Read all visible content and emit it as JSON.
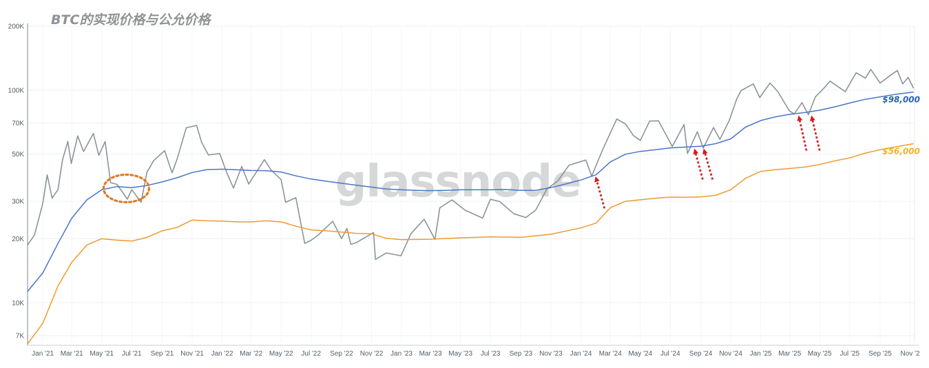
{
  "title": "BTC的实现价格与公允价格",
  "watermark": "glassnode",
  "chart_data": {
    "type": "line",
    "scale": "log",
    "ylim": [
      6500,
      200000
    ],
    "xlim": [
      "2020-12-01",
      "2025-11-10"
    ],
    "yticks": [
      {
        "v": 200000,
        "label": "200K"
      },
      {
        "v": 100000,
        "label": "100K"
      },
      {
        "v": 70000,
        "label": "70K"
      },
      {
        "v": 50000,
        "label": "50K"
      },
      {
        "v": 30000,
        "label": "30K"
      },
      {
        "v": 20000,
        "label": "20K"
      },
      {
        "v": 10000,
        "label": "10K"
      },
      {
        "v": 7000,
        "label": "7K"
      }
    ],
    "xticks": [
      {
        "d": "2021-01-01",
        "label": "Jan '21"
      },
      {
        "d": "2021-03-01",
        "label": "Mar '21"
      },
      {
        "d": "2021-05-01",
        "label": "May '21"
      },
      {
        "d": "2021-07-01",
        "label": "Jul '21"
      },
      {
        "d": "2021-09-01",
        "label": "Sep '21"
      },
      {
        "d": "2021-11-01",
        "label": "Nov '21"
      },
      {
        "d": "2022-01-01",
        "label": "Jan '22"
      },
      {
        "d": "2022-03-01",
        "label": "Mar '22"
      },
      {
        "d": "2022-05-01",
        "label": "May '22"
      },
      {
        "d": "2022-07-01",
        "label": "Jul '22"
      },
      {
        "d": "2022-09-01",
        "label": "Sep '22"
      },
      {
        "d": "2022-11-01",
        "label": "Nov '22"
      },
      {
        "d": "2023-01-01",
        "label": "Jan '23"
      },
      {
        "d": "2023-03-01",
        "label": "Mar '23"
      },
      {
        "d": "2023-05-01",
        "label": "May '23"
      },
      {
        "d": "2023-07-01",
        "label": "Jul '23"
      },
      {
        "d": "2023-09-01",
        "label": "Sep '23"
      },
      {
        "d": "2023-11-01",
        "label": "Nov '23"
      },
      {
        "d": "2024-01-01",
        "label": "Jan '24"
      },
      {
        "d": "2024-03-01",
        "label": "Mar '24"
      },
      {
        "d": "2024-05-01",
        "label": "May '24"
      },
      {
        "d": "2024-07-01",
        "label": "Jul '24"
      },
      {
        "d": "2024-09-01",
        "label": "Sep '24"
      },
      {
        "d": "2024-11-01",
        "label": "Nov '24"
      },
      {
        "d": "2025-01-01",
        "label": "Jan '25"
      },
      {
        "d": "2025-03-01",
        "label": "Mar '25"
      },
      {
        "d": "2025-05-01",
        "label": "May '25"
      },
      {
        "d": "2025-07-01",
        "label": "Jul '25"
      },
      {
        "d": "2025-09-01",
        "label": "Sep '25"
      },
      {
        "d": "2025-11-01",
        "label": "Nov '2"
      }
    ],
    "series": [
      {
        "key": "price",
        "color": "#8a9499",
        "points": [
          [
            "2020-12-01",
            18500
          ],
          [
            "2020-12-15",
            21000
          ],
          [
            "2021-01-01",
            29000
          ],
          [
            "2021-01-10",
            40000
          ],
          [
            "2021-01-20",
            31000
          ],
          [
            "2021-02-01",
            34000
          ],
          [
            "2021-02-10",
            47000
          ],
          [
            "2021-02-21",
            57000
          ],
          [
            "2021-02-28",
            45000
          ],
          [
            "2021-03-13",
            61000
          ],
          [
            "2021-03-25",
            52000
          ],
          [
            "2021-04-14",
            63000
          ],
          [
            "2021-04-25",
            49000
          ],
          [
            "2021-05-08",
            58000
          ],
          [
            "2021-05-19",
            37000
          ],
          [
            "2021-06-01",
            36000
          ],
          [
            "2021-06-22",
            31000
          ],
          [
            "2021-07-01",
            34000
          ],
          [
            "2021-07-20",
            29800
          ],
          [
            "2021-08-01",
            41000
          ],
          [
            "2021-08-15",
            47000
          ],
          [
            "2021-09-06",
            52000
          ],
          [
            "2021-09-21",
            41000
          ],
          [
            "2021-10-01",
            47000
          ],
          [
            "2021-10-20",
            66000
          ],
          [
            "2021-11-10",
            68000
          ],
          [
            "2021-11-20",
            57000
          ],
          [
            "2021-12-04",
            49000
          ],
          [
            "2021-12-27",
            50000
          ],
          [
            "2022-01-10",
            41000
          ],
          [
            "2022-01-24",
            35000
          ],
          [
            "2022-02-10",
            44000
          ],
          [
            "2022-02-24",
            36000
          ],
          [
            "2022-03-28",
            47000
          ],
          [
            "2022-04-10",
            42000
          ],
          [
            "2022-05-01",
            38000
          ],
          [
            "2022-05-10",
            30000
          ],
          [
            "2022-05-31",
            31500
          ],
          [
            "2022-06-18",
            19000
          ],
          [
            "2022-07-01",
            19800
          ],
          [
            "2022-07-15",
            20800
          ],
          [
            "2022-08-14",
            24400
          ],
          [
            "2022-09-01",
            20000
          ],
          [
            "2022-09-12",
            22200
          ],
          [
            "2022-09-20",
            18900
          ],
          [
            "2022-10-01",
            19300
          ],
          [
            "2022-11-05",
            21300
          ],
          [
            "2022-11-09",
            16000
          ],
          [
            "2022-12-01",
            17000
          ],
          [
            "2022-12-31",
            16500
          ],
          [
            "2023-01-20",
            21000
          ],
          [
            "2023-02-16",
            24500
          ],
          [
            "2023-03-10",
            20000
          ],
          [
            "2023-03-20",
            28000
          ],
          [
            "2023-04-14",
            30400
          ],
          [
            "2023-05-10",
            27500
          ],
          [
            "2023-06-15",
            25000
          ],
          [
            "2023-07-01",
            30500
          ],
          [
            "2023-07-20",
            29800
          ],
          [
            "2023-08-18",
            26000
          ],
          [
            "2023-09-11",
            25000
          ],
          [
            "2023-10-01",
            27000
          ],
          [
            "2023-10-24",
            34500
          ],
          [
            "2023-11-15",
            37000
          ],
          [
            "2023-12-08",
            44000
          ],
          [
            "2024-01-11",
            46500
          ],
          [
            "2024-01-23",
            39500
          ],
          [
            "2024-02-14",
            52000
          ],
          [
            "2024-03-14",
            73000
          ],
          [
            "2024-04-01",
            69000
          ],
          [
            "2024-04-17",
            61000
          ],
          [
            "2024-05-01",
            58000
          ],
          [
            "2024-05-20",
            71000
          ],
          [
            "2024-06-07",
            71000
          ],
          [
            "2024-07-05",
            54000
          ],
          [
            "2024-07-29",
            69000
          ],
          [
            "2024-08-05",
            50000
          ],
          [
            "2024-08-25",
            64000
          ],
          [
            "2024-09-06",
            53000
          ],
          [
            "2024-09-27",
            66000
          ],
          [
            "2024-10-10",
            59000
          ],
          [
            "2024-10-29",
            72000
          ],
          [
            "2024-11-13",
            90000
          ],
          [
            "2024-11-22",
            99000
          ],
          [
            "2024-12-17",
            106000
          ],
          [
            "2024-12-30",
            92000
          ],
          [
            "2025-01-20",
            108000
          ],
          [
            "2025-02-05",
            98000
          ],
          [
            "2025-02-28",
            80000
          ],
          [
            "2025-03-10",
            78000
          ],
          [
            "2025-03-26",
            88000
          ],
          [
            "2025-04-08",
            76000
          ],
          [
            "2025-04-22",
            93000
          ],
          [
            "2025-05-10",
            103000
          ],
          [
            "2025-05-22",
            111000
          ],
          [
            "2025-06-22",
            99000
          ],
          [
            "2025-07-14",
            122000
          ],
          [
            "2025-08-02",
            113000
          ],
          [
            "2025-08-13",
            124000
          ],
          [
            "2025-09-01",
            108000
          ],
          [
            "2025-09-20",
            116000
          ],
          [
            "2025-10-06",
            125000
          ],
          [
            "2025-10-17",
            106000
          ],
          [
            "2025-10-28",
            114000
          ],
          [
            "2025-11-08",
            102000
          ]
        ]
      },
      {
        "key": "fair",
        "color": "#4a74c9",
        "points": [
          [
            "2020-12-01",
            11300
          ],
          [
            "2021-01-01",
            13800
          ],
          [
            "2021-02-01",
            19000
          ],
          [
            "2021-03-01",
            25000
          ],
          [
            "2021-04-01",
            30500
          ],
          [
            "2021-05-01",
            34000
          ],
          [
            "2021-06-01",
            35200
          ],
          [
            "2021-07-01",
            34800
          ],
          [
            "2021-08-01",
            35600
          ],
          [
            "2021-09-01",
            37000
          ],
          [
            "2021-10-01",
            38700
          ],
          [
            "2021-11-01",
            41000
          ],
          [
            "2021-12-01",
            42300
          ],
          [
            "2022-01-01",
            42500
          ],
          [
            "2022-02-01",
            42200
          ],
          [
            "2022-03-01",
            41900
          ],
          [
            "2022-04-01",
            41800
          ],
          [
            "2022-05-01",
            41200
          ],
          [
            "2022-06-01",
            39500
          ],
          [
            "2022-07-01",
            38200
          ],
          [
            "2022-08-01",
            37300
          ],
          [
            "2022-09-01",
            36500
          ],
          [
            "2022-10-01",
            35700
          ],
          [
            "2022-11-01",
            35000
          ],
          [
            "2022-12-01",
            34300
          ],
          [
            "2023-01-01",
            34000
          ],
          [
            "2023-02-01",
            33800
          ],
          [
            "2023-03-01",
            33700
          ],
          [
            "2023-04-01",
            33800
          ],
          [
            "2023-05-01",
            34000
          ],
          [
            "2023-06-01",
            34000
          ],
          [
            "2023-07-01",
            34000
          ],
          [
            "2023-08-01",
            34100
          ],
          [
            "2023-09-01",
            33800
          ],
          [
            "2023-10-01",
            33800
          ],
          [
            "2023-11-01",
            34800
          ],
          [
            "2023-12-01",
            36200
          ],
          [
            "2024-01-01",
            37800
          ],
          [
            "2024-02-01",
            40000
          ],
          [
            "2024-03-01",
            46000
          ],
          [
            "2024-04-01",
            50000
          ],
          [
            "2024-05-01",
            51500
          ],
          [
            "2024-06-01",
            52500
          ],
          [
            "2024-07-01",
            53500
          ],
          [
            "2024-08-01",
            54000
          ],
          [
            "2024-09-01",
            54500
          ],
          [
            "2024-10-01",
            56000
          ],
          [
            "2024-11-01",
            59000
          ],
          [
            "2024-12-01",
            67000
          ],
          [
            "2025-01-01",
            72000
          ],
          [
            "2025-02-01",
            75000
          ],
          [
            "2025-03-01",
            77000
          ],
          [
            "2025-04-01",
            78500
          ],
          [
            "2025-05-01",
            80500
          ],
          [
            "2025-06-01",
            83500
          ],
          [
            "2025-07-01",
            87000
          ],
          [
            "2025-08-01",
            90500
          ],
          [
            "2025-09-01",
            93000
          ],
          [
            "2025-10-01",
            95500
          ],
          [
            "2025-11-08",
            98000
          ]
        ]
      },
      {
        "key": "realized",
        "color": "#ee9a2e",
        "points": [
          [
            "2020-12-01",
            6400
          ],
          [
            "2021-01-01",
            8000
          ],
          [
            "2021-02-01",
            12000
          ],
          [
            "2021-03-01",
            15500
          ],
          [
            "2021-04-01",
            18700
          ],
          [
            "2021-05-01",
            20000
          ],
          [
            "2021-06-01",
            19700
          ],
          [
            "2021-07-01",
            19500
          ],
          [
            "2021-08-01",
            20300
          ],
          [
            "2021-09-01",
            21800
          ],
          [
            "2021-10-01",
            22600
          ],
          [
            "2021-11-01",
            24500
          ],
          [
            "2021-12-01",
            24300
          ],
          [
            "2022-01-01",
            24200
          ],
          [
            "2022-02-01",
            24000
          ],
          [
            "2022-03-01",
            24000
          ],
          [
            "2022-04-01",
            24300
          ],
          [
            "2022-05-01",
            24000
          ],
          [
            "2022-06-01",
            22900
          ],
          [
            "2022-07-01",
            22000
          ],
          [
            "2022-08-01",
            21800
          ],
          [
            "2022-09-01",
            21500
          ],
          [
            "2022-10-01",
            21200
          ],
          [
            "2022-11-01",
            21100
          ],
          [
            "2022-12-01",
            20100
          ],
          [
            "2023-01-01",
            19800
          ],
          [
            "2023-03-01",
            19900
          ],
          [
            "2023-05-01",
            20200
          ],
          [
            "2023-07-01",
            20400
          ],
          [
            "2023-09-01",
            20300
          ],
          [
            "2023-11-01",
            21000
          ],
          [
            "2024-01-01",
            22500
          ],
          [
            "2024-02-01",
            23700
          ],
          [
            "2024-03-01",
            28000
          ],
          [
            "2024-04-01",
            30000
          ],
          [
            "2024-05-01",
            30500
          ],
          [
            "2024-06-01",
            31000
          ],
          [
            "2024-07-01",
            31400
          ],
          [
            "2024-08-01",
            31300
          ],
          [
            "2024-09-01",
            31500
          ],
          [
            "2024-10-01",
            32000
          ],
          [
            "2024-11-01",
            34000
          ],
          [
            "2024-12-01",
            38500
          ],
          [
            "2025-01-01",
            41500
          ],
          [
            "2025-02-01",
            42300
          ],
          [
            "2025-03-01",
            42800
          ],
          [
            "2025-04-01",
            43500
          ],
          [
            "2025-05-01",
            44700
          ],
          [
            "2025-06-01",
            46500
          ],
          [
            "2025-07-01",
            48000
          ],
          [
            "2025-08-01",
            50500
          ],
          [
            "2025-09-01",
            52500
          ],
          [
            "2025-10-01",
            54000
          ],
          [
            "2025-11-08",
            56000
          ]
        ]
      }
    ],
    "end_labels": [
      {
        "series": "fair",
        "text": "$98,000",
        "color": "#2a62b8"
      },
      {
        "series": "realized",
        "text": "$56,000",
        "color": "#f0b520"
      }
    ],
    "annotations": {
      "highlight_ellipse": {
        "center": [
          "2021-06-20",
          34500
        ],
        "color": "#e07a22"
      },
      "arrows": [
        {
          "from": [
            "2024-02-18",
            27800
          ],
          "to": [
            "2024-02-01",
            38500
          ],
          "color": "#d11f1f"
        },
        {
          "from": [
            "2024-09-05",
            38000
          ],
          "to": [
            "2024-08-20",
            52000
          ],
          "color": "#d11f1f"
        },
        {
          "from": [
            "2024-09-25",
            38000
          ],
          "to": [
            "2024-09-08",
            52000
          ],
          "color": "#d11f1f"
        },
        {
          "from": [
            "2025-04-04",
            52000
          ],
          "to": [
            "2025-03-20",
            74500
          ],
          "color": "#d11f1f"
        },
        {
          "from": [
            "2025-05-01",
            52000
          ],
          "to": [
            "2025-04-15",
            74500
          ],
          "color": "#d11f1f"
        }
      ]
    }
  }
}
